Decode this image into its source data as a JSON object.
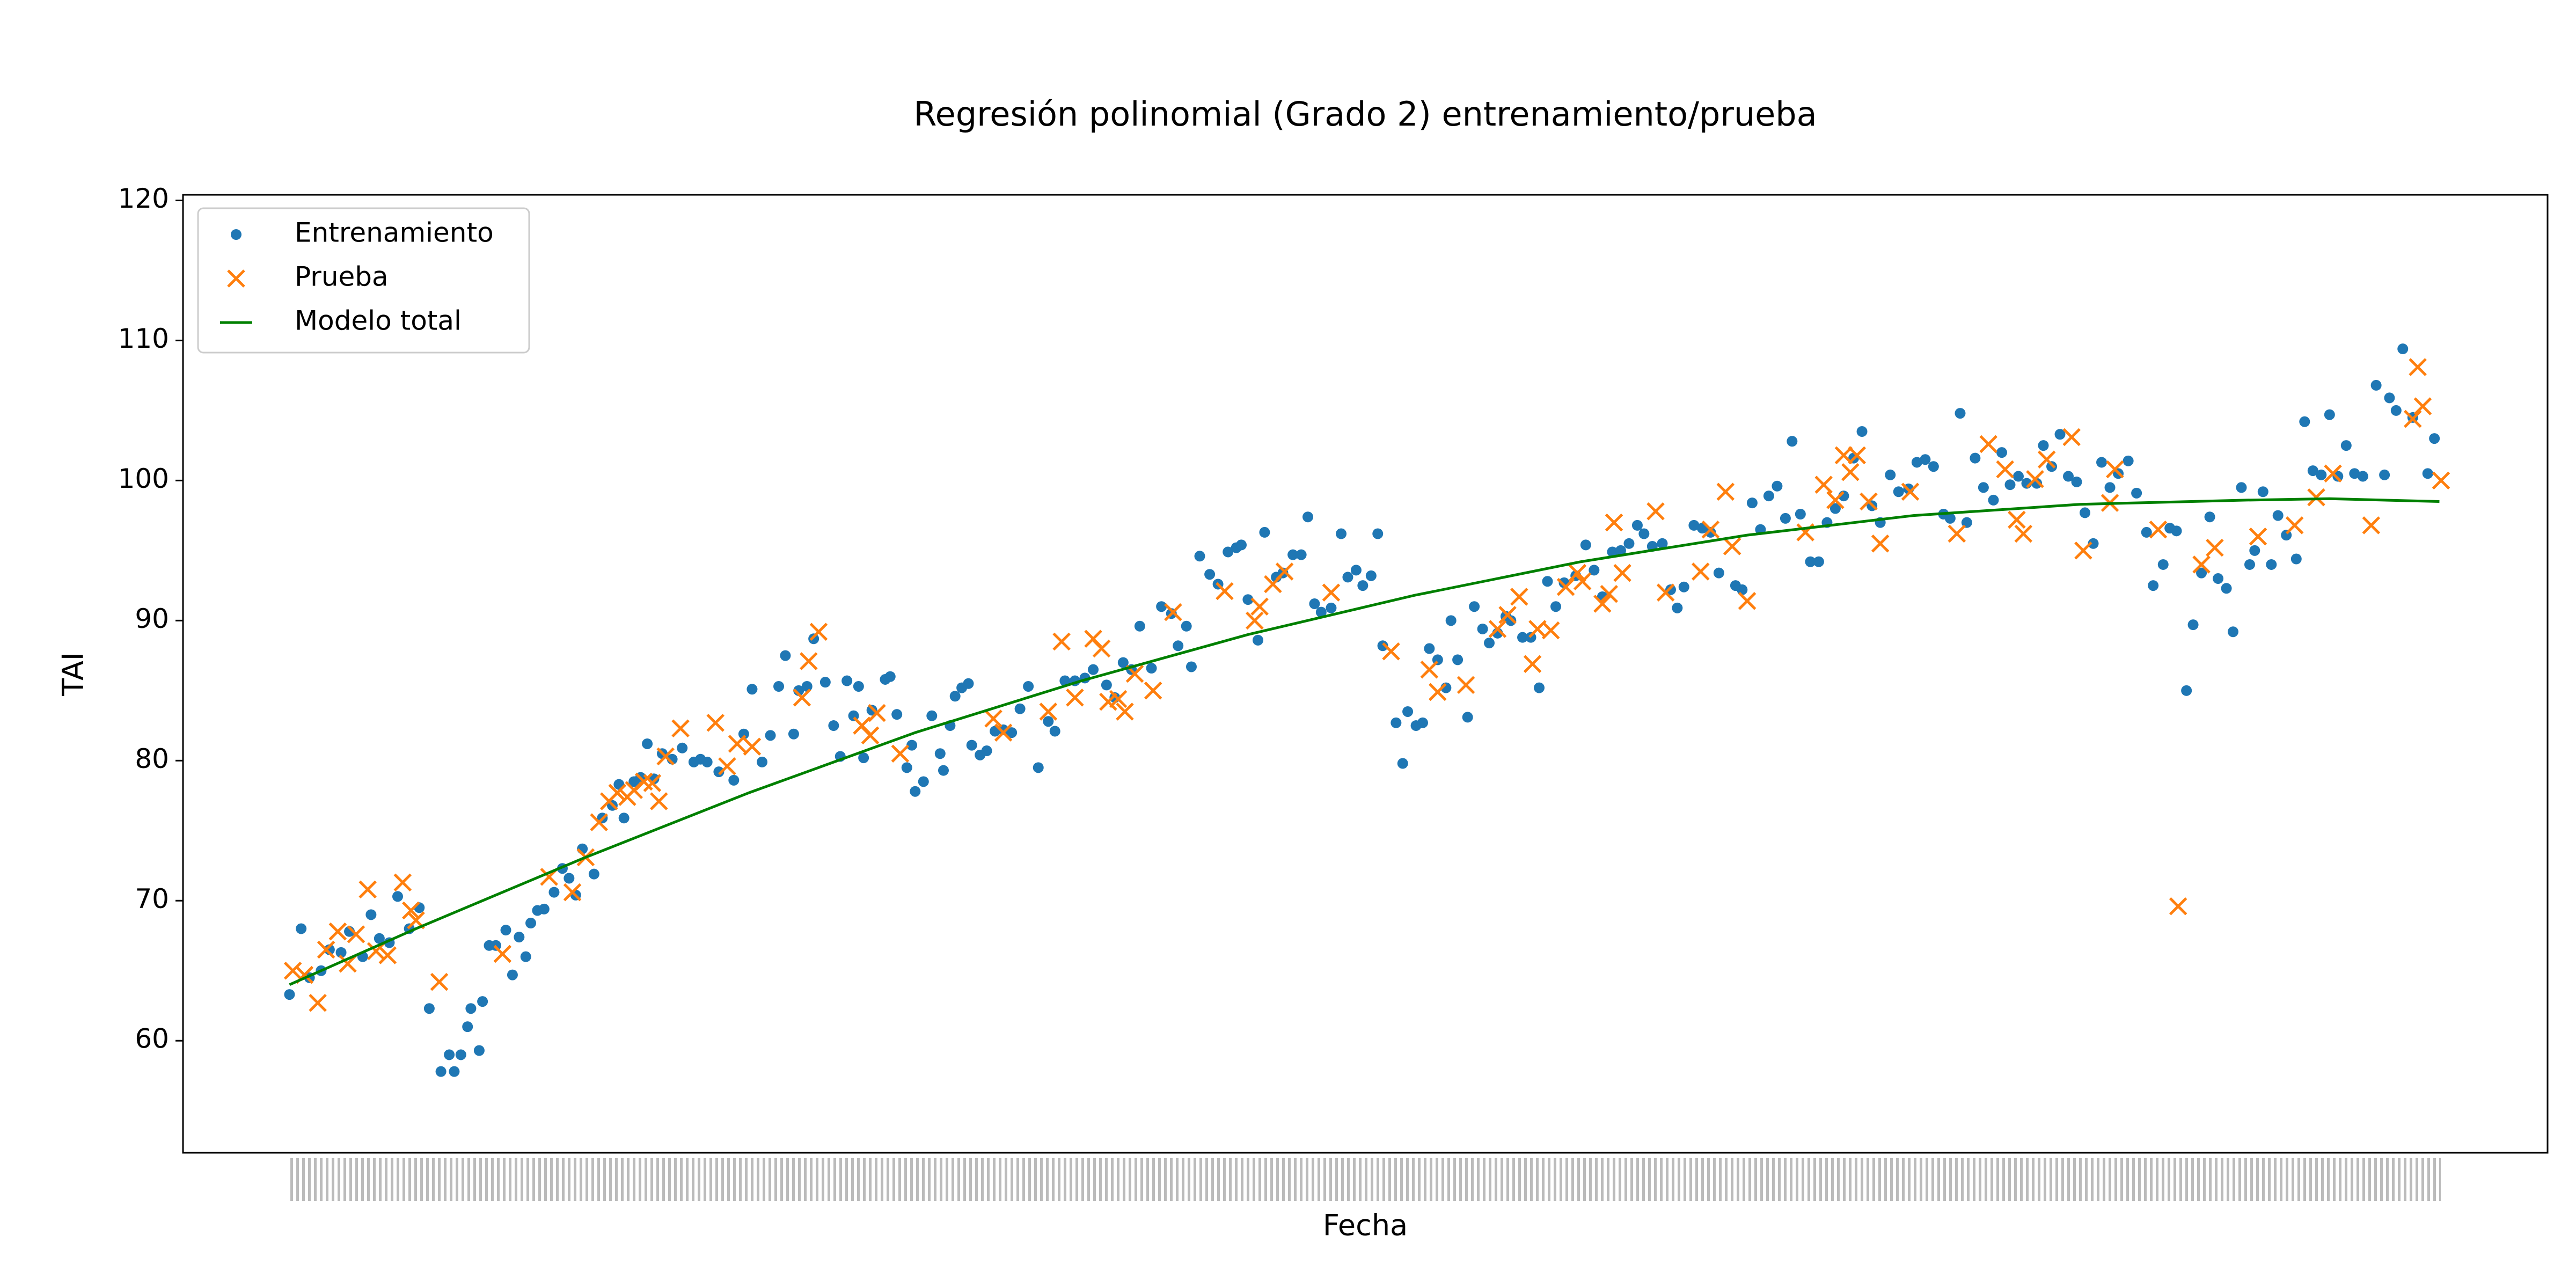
{
  "chart_data": {
    "type": "scatter",
    "title": "Regresión polinomial (Grado 2) entrenamiento/prueba",
    "x_label": "Fecha",
    "y_label": "TAI",
    "xlim": [
      -64,
      1357
    ],
    "ylim": [
      52,
      120.4
    ],
    "yticks": [
      60,
      70,
      80,
      90,
      100,
      110,
      120
    ],
    "legend": "upper left",
    "series": [
      {
        "name": "Entrenamiento",
        "marker": "dot",
        "color": "#1f77b4",
        "x": [
          0,
          7,
          12,
          19,
          24,
          31,
          36,
          44,
          49,
          54,
          60,
          65,
          72,
          78,
          84,
          91,
          96,
          99,
          103,
          107,
          109,
          114,
          116,
          120,
          124,
          130,
          134,
          138,
          142,
          145,
          149,
          153,
          159,
          164,
          168,
          172,
          176,
          183,
          188,
          194,
          198,
          201,
          207,
          211,
          215,
          219,
          224,
          230,
          236,
          243,
          247,
          251,
          258,
          267,
          273,
          278,
          284,
          289,
          294,
          298,
          303,
          306,
          311,
          315,
          322,
          327,
          331,
          335,
          339,
          342,
          345,
          350,
          358,
          361,
          365,
          371,
          374,
          376,
          381,
          386,
          391,
          393,
          397,
          400,
          404,
          408,
          410,
          415,
          419,
          424,
          429,
          434,
          439,
          444,
          450,
          456,
          460,
          466,
          472,
          478,
          483,
          491,
          496,
          501,
          506,
          511,
          518,
          524,
          530,
          534,
          539,
          542,
          547,
          553,
          558,
          564,
          569,
          572,
          576,
          582,
          586,
          593,
          597,
          603,
          608,
          612,
          616,
          620,
          626,
          632,
          636,
          641,
          645,
          650,
          654,
          657,
          665,
          669,
          672,
          677,
          681,
          685,
          690,
          695,
          698,
          702,
          708,
          712,
          717,
          721,
          726,
          731,
          734,
          741,
          746,
          751,
          756,
          761,
          766,
          773,
          779,
          784,
          789,
          795,
          800,
          805,
          810,
          814,
          819,
          825,
          830,
          834,
          838,
          844,
          849,
          854,
          859,
          869,
          873,
          879,
          884,
          889,
          894,
          899,
          903,
          908,
          914,
          919,
          924,
          929,
          934,
          940,
          945,
          951,
          956,
          962,
          967,
          973,
          978,
          983,
          988,
          994,
          998,
          1004,
          1008,
          1013,
          1018,
          1024,
          1029,
          1034,
          1039,
          1044,
          1050,
          1054,
          1059,
          1064,
          1069,
          1074,
          1079,
          1084,
          1089,
          1094,
          1099,
          1105,
          1110,
          1116,
          1120,
          1126,
          1130,
          1134,
          1140,
          1144,
          1149,
          1154,
          1159,
          1164,
          1168,
          1173,
          1178,
          1181,
          1186,
          1191,
          1195,
          1200,
          1206,
          1211,
          1216,
          1221,
          1226,
          1231,
          1236,
          1241,
          1246,
          1254,
          1259,
          1262,
          1266,
          1270,
          1276,
          1285,
          1289
        ],
        "values": [
          63.3,
          68,
          64.5,
          65,
          66.5,
          66.3,
          67.8,
          66,
          69,
          67.3,
          67,
          70.3,
          68,
          69.5,
          62.3,
          57.8,
          59,
          57.8,
          59,
          61,
          62.3,
          59.3,
          62.8,
          66.8,
          66.8,
          67.9,
          64.7,
          67.4,
          66,
          68.4,
          69.3,
          69.4,
          70.6,
          72.3,
          71.6,
          70.4,
          73.7,
          71.9,
          75.9,
          76.8,
          78.3,
          75.9,
          78.5,
          78.8,
          81.2,
          78.7,
          80.5,
          80.1,
          80.9,
          79.9,
          80.1,
          79.9,
          79.2,
          78.6,
          81.9,
          85.1,
          79.9,
          81.8,
          85.3,
          87.5,
          81.9,
          85,
          85.3,
          88.7,
          85.6,
          82.5,
          80.3,
          85.7,
          83.2,
          85.3,
          80.2,
          83.6,
          85.8,
          86,
          83.3,
          79.5,
          81.1,
          77.8,
          78.5,
          83.2,
          80.5,
          79.3,
          82.5,
          84.6,
          85.2,
          85.5,
          81.1,
          80.4,
          80.7,
          82.1,
          82.2,
          82,
          83.7,
          85.3,
          79.5,
          82.8,
          82.1,
          85.7,
          85.7,
          85.9,
          86.5,
          85.4,
          84.5,
          87,
          86.5,
          89.6,
          86.6,
          91,
          90.5,
          88.2,
          89.6,
          86.7,
          94.6,
          93.3,
          92.6,
          94.9,
          95.2,
          95.4,
          91.5,
          88.6,
          96.3,
          93.1,
          93.4,
          94.7,
          94.7,
          97.4,
          91.2,
          90.6,
          90.9,
          96.2,
          93.1,
          93.6,
          92.5,
          93.2,
          96.2,
          88.2,
          82.7,
          79.8,
          83.5,
          82.5,
          82.7,
          88,
          87.2,
          85.2,
          90,
          87.2,
          83.1,
          91,
          89.4,
          88.4,
          89.1,
          90.3,
          90,
          88.8,
          88.8,
          85.2,
          92.8,
          91,
          92.7,
          93.2,
          95.4,
          93.6,
          91.7,
          94.9,
          95,
          95.5,
          96.8,
          96.2,
          95.3,
          95.5,
          92.2,
          90.9,
          92.4,
          96.8,
          96.6,
          96.3,
          93.4,
          92.5,
          92.2,
          98.4,
          96.5,
          98.9,
          99.6,
          97.3,
          102.8,
          97.6,
          94.2,
          94.2,
          97,
          98,
          98.9,
          101.6,
          103.5,
          98.2,
          97,
          100.4,
          99.2,
          99.4,
          101.3,
          101.5,
          101,
          97.6,
          97.3,
          104.8,
          97,
          101.6,
          99.5,
          98.6,
          102,
          99.7,
          100.3,
          99.8,
          99.8,
          102.5,
          101,
          103.3,
          100.3,
          99.9,
          97.7,
          95.5,
          101.3,
          99.5,
          100.5,
          101.4,
          99.1,
          96.3,
          92.5,
          94,
          96.6,
          96.4,
          85,
          89.7,
          93.4,
          97.4,
          93,
          92.3,
          89.2,
          99.5,
          94,
          95,
          99.2,
          94,
          97.5,
          96.1,
          94.4,
          104.2,
          100.7,
          100.4,
          104.7,
          100.3,
          102.5,
          100.5,
          100.3,
          106.8,
          100.4,
          105.9,
          105,
          109.4,
          104.5,
          100.5,
          103
        ]
      },
      {
        "name": "Prueba",
        "marker": "x",
        "color": "#ff7f0e",
        "x": [
          2,
          9,
          17,
          22,
          29,
          35,
          40,
          47,
          52,
          59,
          68,
          73,
          76,
          90,
          128,
          156,
          170,
          178,
          186,
          192,
          197,
          203,
          207,
          213,
          218,
          222,
          226,
          235,
          256,
          263,
          269,
          278,
          308,
          312,
          318,
          344,
          349,
          353,
          367,
          423,
          429,
          456,
          464,
          472,
          483,
          488,
          492,
          498,
          502,
          508,
          519,
          531,
          562,
          580,
          583,
          591,
          598,
          626,
          662,
          685,
          690,
          707,
          726,
          732,
          739,
          747,
          750,
          758,
          767,
          774,
          777,
          789,
          793,
          796,
          801,
          821,
          827,
          848,
          854,
          863,
          867,
          876,
          911,
          922,
          929,
          934,
          938,
          942,
          949,
          956,
          974,
          1002,
          1021,
          1031,
          1038,
          1042,
          1049,
          1056,
          1071,
          1078,
          1094,
          1097,
          1123,
          1135,
          1149,
          1157,
          1183,
          1205,
          1218,
          1228,
          1251,
          1276,
          1279,
          1282,
          1293
        ],
        "values": [
          65,
          64.7,
          62.7,
          66.5,
          67.8,
          65.5,
          67.6,
          70.8,
          66.4,
          66.1,
          71.3,
          69.3,
          68.6,
          64.2,
          66.2,
          71.7,
          70.6,
          73.1,
          75.6,
          77.1,
          77.7,
          77.4,
          77.9,
          78.5,
          78.4,
          77.1,
          80.3,
          82.3,
          82.7,
          79.6,
          81.2,
          81,
          84.5,
          87.1,
          89.2,
          82.5,
          81.8,
          83.4,
          80.5,
          83,
          82,
          83.5,
          88.5,
          84.5,
          88.7,
          88,
          84.2,
          84.4,
          83.5,
          86.2,
          85,
          90.6,
          92.1,
          90,
          91,
          92.6,
          93.5,
          92,
          87.8,
          86.5,
          84.9,
          85.4,
          89.4,
          90.4,
          91.7,
          86.9,
          89.4,
          89.3,
          92.4,
          93.4,
          92.8,
          91.2,
          91.9,
          97,
          93.4,
          97.8,
          92,
          93.5,
          96.5,
          99.2,
          95.3,
          91.4,
          96.3,
          99.7,
          98.6,
          101.8,
          100.6,
          101.8,
          98.5,
          95.5,
          99.2,
          96.2,
          102.6,
          100.8,
          97.2,
          96.2,
          100.1,
          101.5,
          103.1,
          95,
          98.4,
          100.8,
          96.5,
          69.6,
          94,
          95.2,
          96,
          96.8,
          98.8,
          100.5,
          96.8,
          104.4,
          108.1,
          105.3,
          100
        ]
      },
      {
        "name": "Modelo total",
        "marker": "line",
        "color": "#008000",
        "x": [
          0,
          76,
          176,
          276,
          376,
          476,
          576,
          676,
          776,
          876,
          976,
          1076,
          1176,
          1226,
          1292
        ],
        "values": [
          64,
          68,
          73,
          77.7,
          82,
          85.7,
          89,
          91.8,
          94.2,
          96.1,
          97.5,
          98.3,
          98.6,
          98.7,
          98.5
        ]
      }
    ]
  }
}
